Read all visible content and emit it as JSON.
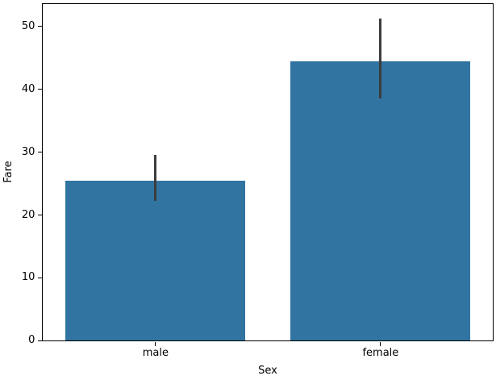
{
  "chart_data": {
    "type": "bar",
    "title": "",
    "xlabel": "Sex",
    "ylabel": "Fare",
    "categories": [
      "male",
      "female"
    ],
    "values": [
      25.5,
      44.5
    ],
    "error_bars": [
      {
        "low": 22.2,
        "high": 29.6
      },
      {
        "low": 38.5,
        "high": 51.2
      }
    ],
    "yticks": [
      0,
      10,
      20,
      30,
      40,
      50
    ],
    "ylim": [
      0,
      53.5
    ],
    "grid": false,
    "legend": null,
    "bar_width_fraction": 0.8,
    "colors": {
      "bar": "#3274a1",
      "error_bar": "#3d3d3d",
      "spine": "#000000",
      "text": "#000000",
      "background": "#ffffff"
    }
  }
}
